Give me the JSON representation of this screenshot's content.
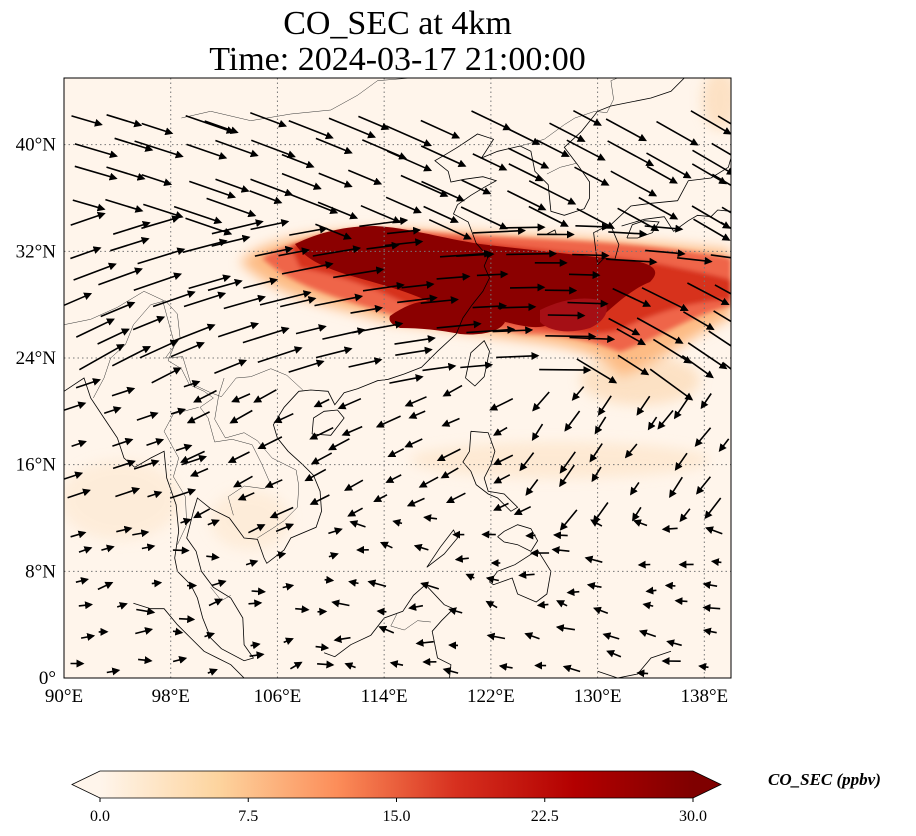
{
  "title_line1": "CO_SEC at 4km",
  "title_line2": "Time: 2024-03-17 21:00:00",
  "map": {
    "lon_range": [
      90,
      140
    ],
    "lat_range": [
      0,
      45
    ],
    "x_ticks": [
      {
        "value": 90,
        "label": "90°E"
      },
      {
        "value": 98,
        "label": "98°E"
      },
      {
        "value": 106,
        "label": "106°E"
      },
      {
        "value": 114,
        "label": "114°E"
      },
      {
        "value": 122,
        "label": "122°E"
      },
      {
        "value": 130,
        "label": "130°E"
      },
      {
        "value": 138,
        "label": "138°E"
      }
    ],
    "y_ticks": [
      {
        "value": 0,
        "label": "0°"
      },
      {
        "value": 8,
        "label": "8°N"
      },
      {
        "value": 16,
        "label": "16°N"
      },
      {
        "value": 24,
        "label": "24°N"
      },
      {
        "value": 32,
        "label": "32°N"
      },
      {
        "value": 40,
        "label": "40°N"
      }
    ],
    "gridlines": true,
    "plume_color": "#8b0000",
    "background_color": "#fff5eb"
  },
  "colorbar": {
    "label": "CO_SEC (ppbv)",
    "min": 0,
    "max": 30,
    "ticks": [
      {
        "value": 0,
        "label": "0.0"
      },
      {
        "value": 7.5,
        "label": "7.5"
      },
      {
        "value": 15,
        "label": "15.0"
      },
      {
        "value": 22.5,
        "label": "22.5"
      },
      {
        "value": 30,
        "label": "30.0"
      }
    ],
    "colormap": "OrRd",
    "stops": [
      "#fff5eb",
      "#fdd49e",
      "#fc8d59",
      "#d7301f",
      "#b30000",
      "#7f0000"
    ],
    "extend": "both"
  }
}
